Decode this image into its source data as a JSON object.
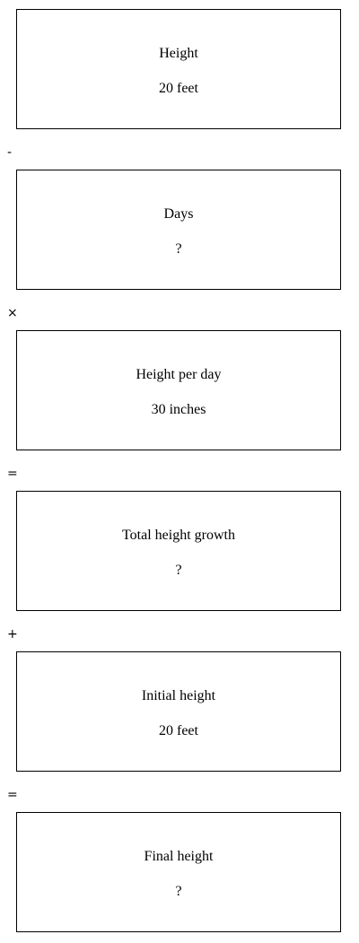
{
  "steps": [
    {
      "label": "Height",
      "value": "20 feet"
    },
    {
      "label": "Days",
      "value": "?"
    },
    {
      "label": "Height per day",
      "value": "30 inches"
    },
    {
      "label": "Total height growth",
      "value": "?"
    },
    {
      "label": "Initial height",
      "value": "20 feet"
    },
    {
      "label": "Final height",
      "value": "?"
    }
  ],
  "operators": [
    "-",
    "×",
    "=",
    "+",
    "="
  ]
}
